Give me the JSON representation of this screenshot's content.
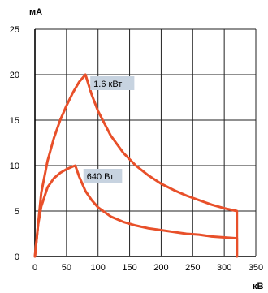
{
  "chart_data": {
    "type": "line",
    "title": "",
    "xlabel": "кВ",
    "ylabel": "мА",
    "xlim": [
      0,
      350
    ],
    "ylim": [
      0,
      25
    ],
    "x_ticks": [
      "0",
      "50",
      "100",
      "150",
      "200",
      "250",
      "300",
      "350"
    ],
    "y_ticks": [
      "0",
      "5",
      "10",
      "15",
      "20",
      "25"
    ],
    "grid": true,
    "line_color": "#e8502a",
    "callout_bg": "#c7d3e0",
    "series": [
      {
        "name": "1.6 кВт",
        "x": [
          0,
          10,
          20,
          30,
          40,
          50,
          60,
          70,
          80,
          90,
          100,
          120,
          140,
          160,
          180,
          200,
          220,
          240,
          260,
          280,
          300,
          320,
          320
        ],
        "y": [
          0,
          7,
          10.5,
          13,
          15,
          16.6,
          18,
          19.2,
          20,
          17.8,
          16,
          13.3,
          11.4,
          10,
          8.9,
          8,
          7.3,
          6.7,
          6.2,
          5.7,
          5.3,
          5,
          0
        ]
      },
      {
        "name": "640 Вт",
        "x": [
          0,
          5,
          10,
          20,
          30,
          40,
          50,
          60,
          64,
          70,
          80,
          90,
          100,
          120,
          140,
          160,
          180,
          200,
          220,
          240,
          260,
          280,
          300,
          320,
          320
        ],
        "y": [
          0,
          3.5,
          5.5,
          7.6,
          8.6,
          9.2,
          9.6,
          9.9,
          10,
          8.8,
          7.2,
          6.2,
          5.4,
          4.4,
          3.8,
          3.4,
          3.1,
          2.9,
          2.7,
          2.5,
          2.4,
          2.2,
          2.1,
          2,
          0
        ]
      }
    ]
  }
}
